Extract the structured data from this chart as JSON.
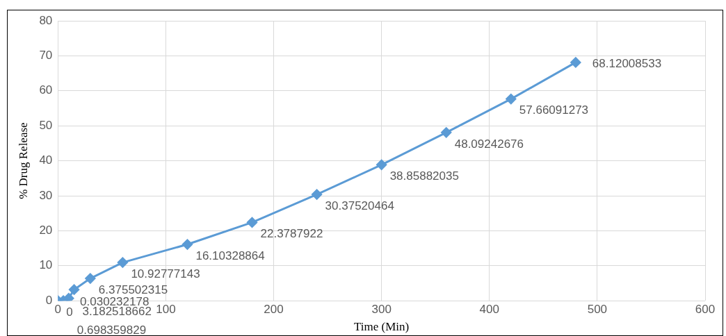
{
  "chart_data": {
    "type": "line",
    "xlabel": "Time (Min)",
    "ylabel": "% Drug Release",
    "series": [
      {
        "color": "#5b9bd5",
        "x": [
          0,
          5,
          10,
          15,
          30,
          60,
          120,
          180,
          240,
          300,
          360,
          420,
          480
        ],
        "values": [
          0,
          0.030232178,
          0.698359829,
          3.182518662,
          6.375502315,
          10.92777143,
          16.10328864,
          22.3787922,
          30.37520464,
          38.85882035,
          48.09242676,
          57.66091273,
          68.12008533
        ]
      }
    ],
    "data_labels": true,
    "xlim": [
      0,
      600
    ],
    "xticks": [
      0,
      100,
      200,
      300,
      400,
      500,
      600
    ],
    "ylim": [
      0,
      80
    ],
    "yticks": [
      0,
      10,
      20,
      30,
      40,
      50,
      60,
      70,
      80
    ],
    "grid": true,
    "marker": "diamond",
    "line_style": "solid"
  }
}
